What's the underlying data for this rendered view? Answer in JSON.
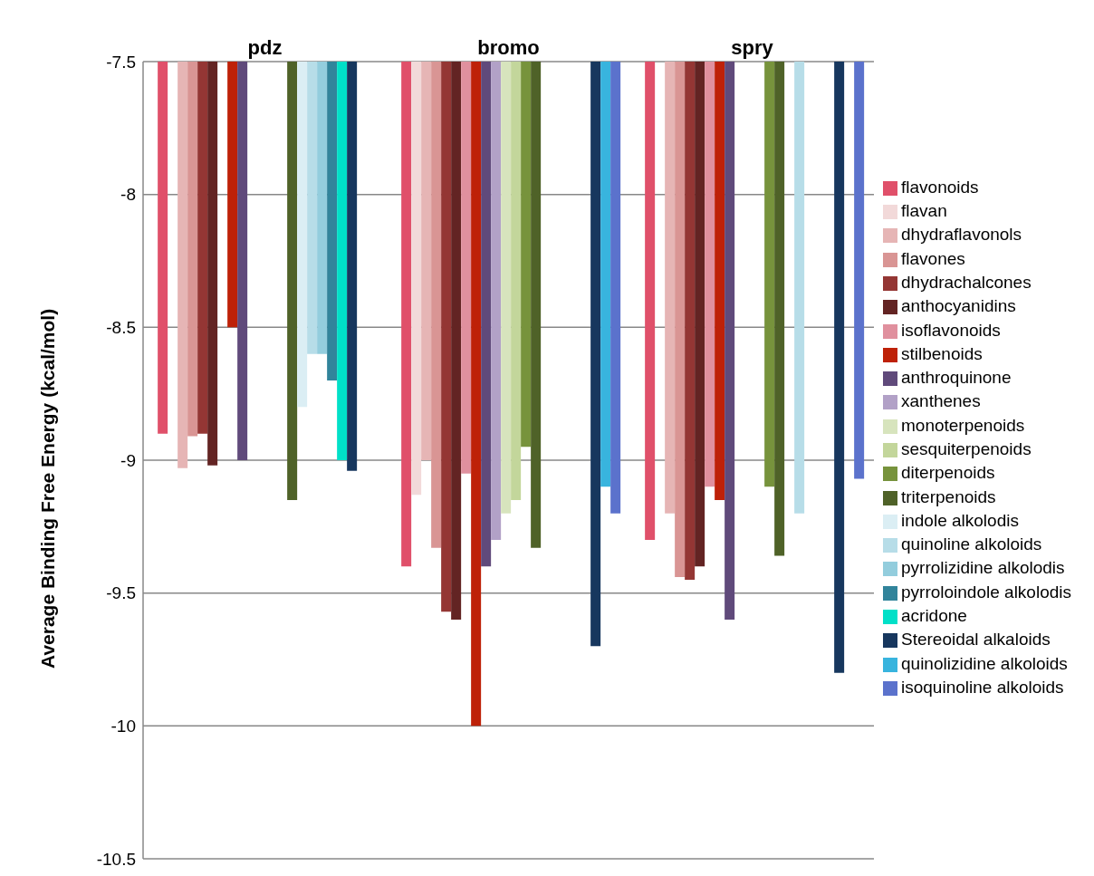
{
  "chart_data": {
    "type": "bar",
    "ylabel": "Average Binding Free Energy (kcal/mol)",
    "categories": [
      "pdz",
      "bromo",
      "spry"
    ],
    "ylim": [
      -10.5,
      -7.5
    ],
    "yticks": [
      -10.5,
      -10,
      -9.5,
      -9,
      -8.5,
      -8,
      -7.5
    ],
    "grid": "y",
    "legend": "right",
    "series": [
      {
        "name": "flavonoids",
        "color": "#e0506a",
        "values": [
          -8.9,
          -9.4,
          -9.3
        ]
      },
      {
        "name": "flavan",
        "color": "#f2d9d9",
        "values": [
          null,
          -9.13,
          null
        ]
      },
      {
        "name": "dhydraflavonols",
        "color": "#e6b5b5",
        "values": [
          -9.03,
          -9.0,
          -9.2
        ]
      },
      {
        "name": "flavones",
        "color": "#d99594",
        "values": [
          -8.91,
          -9.33,
          -9.44
        ]
      },
      {
        "name": "dhydrachalcones",
        "color": "#943634",
        "values": [
          -8.9,
          -9.57,
          -9.45
        ]
      },
      {
        "name": "anthocyanidins",
        "color": "#632423",
        "values": [
          -9.02,
          -9.6,
          -9.4
        ]
      },
      {
        "name": "isoflavonoids",
        "color": "#e0909e",
        "values": [
          null,
          -9.05,
          -9.1
        ]
      },
      {
        "name": "stilbenoids",
        "color": "#be2108",
        "values": [
          -8.5,
          -10.0,
          -9.15
        ]
      },
      {
        "name": "anthroquinone",
        "color": "#604a7b",
        "values": [
          -9.0,
          -9.4,
          -9.6
        ]
      },
      {
        "name": "xanthenes",
        "color": "#b2a1c7",
        "values": [
          null,
          -9.3,
          null
        ]
      },
      {
        "name": "monoterpenoids",
        "color": "#d7e4bd",
        "values": [
          null,
          -9.2,
          null
        ]
      },
      {
        "name": "sesquiterpenoids",
        "color": "#c3d69b",
        "values": [
          null,
          -9.15,
          null
        ]
      },
      {
        "name": "diterpenoids",
        "color": "#77933c",
        "values": [
          null,
          -8.95,
          -9.1
        ]
      },
      {
        "name": "triterpenoids",
        "color": "#4f6228",
        "values": [
          -9.15,
          -9.33,
          -9.36
        ]
      },
      {
        "name": "indole alkolodis",
        "color": "#dbeef4",
        "values": [
          -8.8,
          null,
          null
        ]
      },
      {
        "name": "quinoline alkoloids",
        "color": "#b7dde8",
        "values": [
          -8.6,
          null,
          -9.2
        ]
      },
      {
        "name": "pyrrolizidine alkolodis",
        "color": "#93cddd",
        "values": [
          -8.6,
          null,
          null
        ]
      },
      {
        "name": "pyrroloindole alkolodis",
        "color": "#31849b",
        "values": [
          -8.7,
          null,
          null
        ]
      },
      {
        "name": "acridone",
        "color": "#00e0c8",
        "values": [
          -9.0,
          null,
          null
        ]
      },
      {
        "name": "Stereoidal alkaloids",
        "color": "#17375e",
        "values": [
          -9.04,
          -9.7,
          -9.8
        ]
      },
      {
        "name": "quinolizidine alkoloids",
        "color": "#38b4de",
        "values": [
          null,
          -9.1,
          null
        ]
      },
      {
        "name": "isoquinoline alkoloids",
        "color": "#5b72cc",
        "values": [
          null,
          -9.2,
          -9.07
        ]
      }
    ]
  }
}
